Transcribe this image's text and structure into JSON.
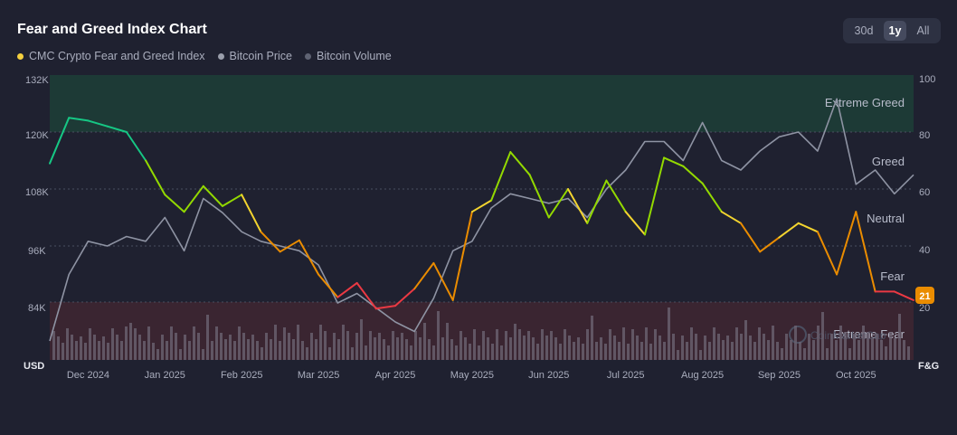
{
  "header": {
    "title": "Fear and Greed Index Chart"
  },
  "range": {
    "options": [
      "30d",
      "1y",
      "All"
    ],
    "active": "1y"
  },
  "legend": [
    {
      "label": "CMC Crypto Fear and Greed Index",
      "color": "#f4d03f"
    },
    {
      "label": "Bitcoin Price",
      "color": "#9a9eab"
    },
    {
      "label": "Bitcoin Volume",
      "color": "#5f6373"
    }
  ],
  "axes": {
    "left_unit": "USD",
    "right_unit": "F&G",
    "left_ticks": [
      "132K",
      "120K",
      "108K",
      "96K",
      "84K"
    ],
    "right_ticks": [
      "100",
      "80",
      "60",
      "40",
      "20"
    ]
  },
  "zones": {
    "extreme_greed": "Extreme Greed",
    "greed": "Greed",
    "neutral": "Neutral",
    "fear": "Fear",
    "extreme_fear": "Extreme Fear"
  },
  "current": {
    "value": "21"
  },
  "watermark": "CoinMarketCap",
  "colors": {
    "extreme_greed": "#16c784",
    "greed": "#93d900",
    "neutral": "#f3d42f",
    "fear": "#ea8c00",
    "extreme_fear": "#ea3943"
  },
  "chart_data": {
    "type": "line",
    "title": "Fear and Greed Index Chart",
    "x_labels": [
      "Dec 2024",
      "Jan 2025",
      "Feb 2025",
      "Mar 2025",
      "Apr 2025",
      "May 2025",
      "Jun 2025",
      "Jul 2025",
      "Aug 2025",
      "Sep 2025",
      "Oct 2025"
    ],
    "x_label_index": [
      2,
      6,
      10,
      14,
      18,
      22,
      26,
      30,
      34,
      38,
      42
    ],
    "ylim_price": [
      72000,
      132000
    ],
    "ylim_fg": [
      0,
      100
    ],
    "series": [
      {
        "name": "CMC Crypto Fear and Greed Index",
        "values": [
          69,
          85,
          84,
          82,
          80,
          70,
          58,
          52,
          61,
          54,
          58,
          45,
          38,
          42,
          30,
          22,
          27,
          18,
          19,
          25,
          34,
          21,
          52,
          56,
          73,
          65,
          50,
          60,
          48,
          63,
          52,
          44,
          71,
          68,
          62,
          52,
          48,
          38,
          43,
          48,
          45,
          30,
          52,
          24,
          24,
          21
        ]
      },
      {
        "name": "Bitcoin Price",
        "values": [
          76000,
          90000,
          97000,
          96000,
          98000,
          97000,
          102000,
          95000,
          106000,
          103000,
          99000,
          97000,
          96000,
          95000,
          92000,
          84000,
          86000,
          83000,
          80000,
          78000,
          85000,
          95000,
          97000,
          104000,
          107000,
          106000,
          105000,
          106000,
          102000,
          108000,
          112000,
          118000,
          118000,
          114000,
          122000,
          114000,
          112000,
          116000,
          119000,
          120000,
          116000,
          127000,
          109000,
          112000,
          107000,
          111000
        ]
      }
    ]
  }
}
